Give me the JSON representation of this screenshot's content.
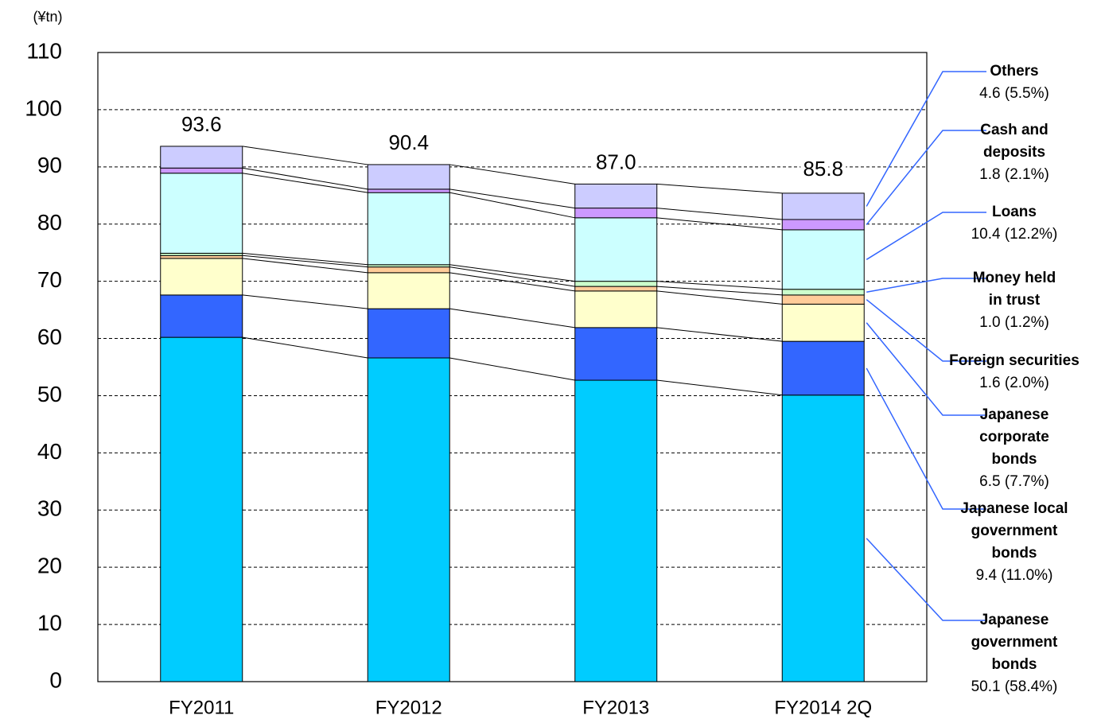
{
  "chart_data": {
    "type": "stacked-bar",
    "y_label": "(¥tn)",
    "categories": [
      "FY2011",
      "FY2012",
      "FY2013",
      "FY2014 2Q"
    ],
    "series": [
      {
        "name": "Japanese government bonds",
        "color": "#00ccff",
        "values": [
          60.2,
          56.6,
          52.7,
          50.1
        ],
        "value_labels": [
          null,
          null,
          null,
          "50.1 (58.4%)"
        ]
      },
      {
        "name": "Japanese local government bonds",
        "color": "#3366ff",
        "values": [
          7.4,
          8.6,
          9.2,
          9.4
        ],
        "value_labels": [
          null,
          null,
          null,
          "9.4 (11.0%)"
        ]
      },
      {
        "name": "Japanese corporate bonds",
        "color": "#ffffcc",
        "values": [
          6.4,
          6.3,
          6.4,
          6.5
        ],
        "value_labels": [
          null,
          null,
          null,
          "6.5 (7.7%)"
        ]
      },
      {
        "name": "Foreign securities",
        "color": "#ffcc99",
        "values": [
          0.5,
          1.0,
          0.8,
          1.6
        ],
        "value_labels": [
          null,
          null,
          null,
          "1.6 (2.0%)"
        ]
      },
      {
        "name": "Money held in trust",
        "color": "#ccffcc",
        "values": [
          0.4,
          0.4,
          0.9,
          1.0
        ],
        "value_labels": [
          null,
          null,
          null,
          "1.0 (1.2%)"
        ]
      },
      {
        "name": "Loans",
        "color": "#ccffff",
        "values": [
          14.0,
          12.6,
          11.1,
          10.4
        ],
        "value_labels": [
          null,
          null,
          null,
          "10.4 (12.2%)"
        ]
      },
      {
        "name": "Cash and deposits",
        "color": "#cc99ff",
        "values": [
          0.9,
          0.6,
          1.7,
          1.8
        ],
        "value_labels": [
          null,
          null,
          null,
          "1.8 (2.1%)"
        ]
      },
      {
        "name": "Others",
        "color": "#ccccff",
        "values": [
          3.8,
          4.3,
          4.2,
          4.6
        ],
        "value_labels": [
          null,
          null,
          null,
          "4.6 (5.5%)"
        ]
      }
    ],
    "totals": {
      "values": [
        93.6,
        90.4,
        87,
        85.8
      ],
      "value_labels": [
        "93.6",
        "90.4",
        "87.0",
        "85.8"
      ]
    },
    "ylim": [
      0,
      110
    ],
    "yticks": [
      0,
      10,
      20,
      30,
      40,
      50,
      60,
      70,
      80,
      90,
      100,
      110
    ],
    "grid": true
  }
}
